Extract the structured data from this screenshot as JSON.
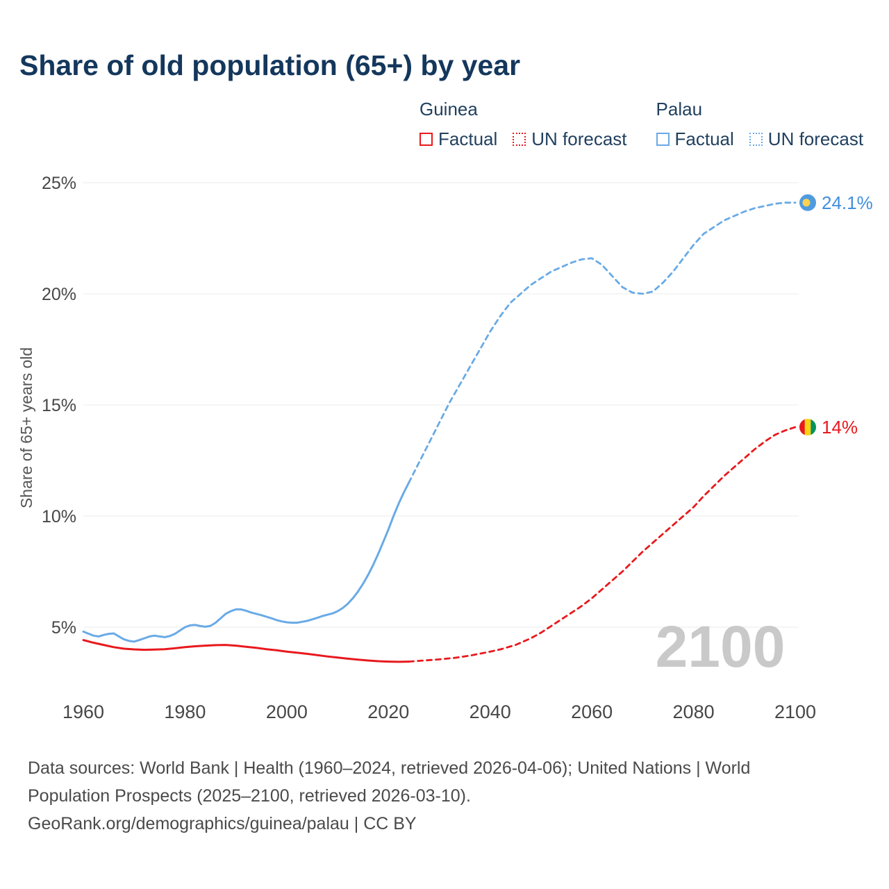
{
  "header": {
    "title": "Share of old population (65+) by year"
  },
  "legend": {
    "groups": [
      {
        "name": "Guinea",
        "color": "#e8191d",
        "items": [
          {
            "label": "Factual",
            "style": "solid"
          },
          {
            "label": "UN forecast",
            "style": "dotted"
          }
        ]
      },
      {
        "name": "Palau",
        "color": "#69aae6",
        "items": [
          {
            "label": "Factual",
            "style": "solid"
          },
          {
            "label": "UN forecast",
            "style": "dotted"
          }
        ]
      }
    ]
  },
  "footer": {
    "sources": "Data sources: World Bank | Health (1960–2024, retrieved 2026-04-06); United Nations | World Population Prospects (2025–2100, retrieved 2026-03-10).",
    "attribution": "GeoRank.org/demographics/guinea/palau | CC BY"
  },
  "chart_data": {
    "type": "line",
    "title": "Share of old population (65+) by year",
    "xlabel": "",
    "ylabel": "Share of 65+ years old",
    "xlim": [
      1955,
      2115
    ],
    "ylim": [
      2.5,
      26.5
    ],
    "xticks": [
      1960,
      1980,
      2000,
      2020,
      2040,
      2060,
      2080,
      2100
    ],
    "yticks": [
      5,
      10,
      15,
      20,
      25
    ],
    "grid": true,
    "legend_position": "top-right",
    "watermark": "2100",
    "series": [
      {
        "id": "guinea-factual",
        "name": "Guinea Factual",
        "color": "#e8191d",
        "dash": false,
        "points": [
          [
            1960,
            4.42
          ],
          [
            1962,
            4.3
          ],
          [
            1964,
            4.2
          ],
          [
            1966,
            4.1
          ],
          [
            1968,
            4.03
          ],
          [
            1970,
            4.0
          ],
          [
            1972,
            3.98
          ],
          [
            1974,
            3.99
          ],
          [
            1976,
            4.01
          ],
          [
            1978,
            4.05
          ],
          [
            1980,
            4.1
          ],
          [
            1982,
            4.14
          ],
          [
            1984,
            4.17
          ],
          [
            1986,
            4.19
          ],
          [
            1988,
            4.2
          ],
          [
            1990,
            4.17
          ],
          [
            1992,
            4.12
          ],
          [
            1994,
            4.07
          ],
          [
            1996,
            4.01
          ],
          [
            1998,
            3.96
          ],
          [
            2000,
            3.9
          ],
          [
            2002,
            3.85
          ],
          [
            2004,
            3.8
          ],
          [
            2006,
            3.74
          ],
          [
            2008,
            3.68
          ],
          [
            2010,
            3.63
          ],
          [
            2012,
            3.58
          ],
          [
            2014,
            3.54
          ],
          [
            2016,
            3.5
          ],
          [
            2018,
            3.47
          ],
          [
            2020,
            3.45
          ],
          [
            2022,
            3.44
          ],
          [
            2024,
            3.45
          ]
        ]
      },
      {
        "id": "guinea-forecast",
        "name": "Guinea UN forecast",
        "color": "#e8191d",
        "dash": true,
        "points": [
          [
            2024,
            3.45
          ],
          [
            2027,
            3.5
          ],
          [
            2030,
            3.55
          ],
          [
            2033,
            3.62
          ],
          [
            2036,
            3.72
          ],
          [
            2039,
            3.85
          ],
          [
            2042,
            4.0
          ],
          [
            2045,
            4.2
          ],
          [
            2048,
            4.5
          ],
          [
            2050,
            4.75
          ],
          [
            2052,
            5.05
          ],
          [
            2054,
            5.35
          ],
          [
            2056,
            5.65
          ],
          [
            2058,
            5.95
          ],
          [
            2060,
            6.3
          ],
          [
            2062,
            6.7
          ],
          [
            2064,
            7.1
          ],
          [
            2066,
            7.5
          ],
          [
            2068,
            7.95
          ],
          [
            2070,
            8.4
          ],
          [
            2072,
            8.8
          ],
          [
            2074,
            9.2
          ],
          [
            2076,
            9.6
          ],
          [
            2078,
            10.0
          ],
          [
            2080,
            10.4
          ],
          [
            2082,
            10.9
          ],
          [
            2084,
            11.35
          ],
          [
            2086,
            11.8
          ],
          [
            2088,
            12.2
          ],
          [
            2090,
            12.6
          ],
          [
            2092,
            13.0
          ],
          [
            2094,
            13.35
          ],
          [
            2096,
            13.65
          ],
          [
            2098,
            13.85
          ],
          [
            2100,
            14.0
          ]
        ]
      },
      {
        "id": "palau-factual",
        "name": "Palau Factual",
        "color": "#69aae6",
        "dash": false,
        "points": [
          [
            1960,
            4.8
          ],
          [
            1962,
            4.62
          ],
          [
            1963,
            4.58
          ],
          [
            1964,
            4.65
          ],
          [
            1965,
            4.7
          ],
          [
            1966,
            4.72
          ],
          [
            1967,
            4.58
          ],
          [
            1968,
            4.45
          ],
          [
            1969,
            4.38
          ],
          [
            1970,
            4.35
          ],
          [
            1971,
            4.42
          ],
          [
            1972,
            4.5
          ],
          [
            1973,
            4.58
          ],
          [
            1974,
            4.62
          ],
          [
            1975,
            4.58
          ],
          [
            1976,
            4.55
          ],
          [
            1977,
            4.6
          ],
          [
            1978,
            4.7
          ],
          [
            1979,
            4.85
          ],
          [
            1980,
            5.0
          ],
          [
            1981,
            5.08
          ],
          [
            1982,
            5.1
          ],
          [
            1983,
            5.05
          ],
          [
            1984,
            5.02
          ],
          [
            1985,
            5.06
          ],
          [
            1986,
            5.2
          ],
          [
            1987,
            5.4
          ],
          [
            1988,
            5.6
          ],
          [
            1989,
            5.72
          ],
          [
            1990,
            5.8
          ],
          [
            1991,
            5.8
          ],
          [
            1992,
            5.74
          ],
          [
            1993,
            5.66
          ],
          [
            1994,
            5.6
          ],
          [
            1995,
            5.54
          ],
          [
            1996,
            5.47
          ],
          [
            1997,
            5.4
          ],
          [
            1998,
            5.32
          ],
          [
            1999,
            5.26
          ],
          [
            2000,
            5.22
          ],
          [
            2001,
            5.2
          ],
          [
            2002,
            5.2
          ],
          [
            2003,
            5.24
          ],
          [
            2004,
            5.28
          ],
          [
            2005,
            5.35
          ],
          [
            2006,
            5.42
          ],
          [
            2007,
            5.5
          ],
          [
            2008,
            5.56
          ],
          [
            2009,
            5.62
          ],
          [
            2010,
            5.72
          ],
          [
            2011,
            5.86
          ],
          [
            2012,
            6.05
          ],
          [
            2013,
            6.3
          ],
          [
            2014,
            6.6
          ],
          [
            2015,
            6.95
          ],
          [
            2016,
            7.35
          ],
          [
            2017,
            7.8
          ],
          [
            2018,
            8.3
          ],
          [
            2019,
            8.85
          ],
          [
            2020,
            9.4
          ],
          [
            2021,
            10.0
          ],
          [
            2022,
            10.55
          ],
          [
            2023,
            11.05
          ],
          [
            2024,
            11.5
          ]
        ]
      },
      {
        "id": "palau-forecast",
        "name": "Palau UN forecast",
        "color": "#69aae6",
        "dash": true,
        "points": [
          [
            2024,
            11.5
          ],
          [
            2026,
            12.4
          ],
          [
            2028,
            13.3
          ],
          [
            2030,
            14.2
          ],
          [
            2032,
            15.1
          ],
          [
            2034,
            15.9
          ],
          [
            2036,
            16.7
          ],
          [
            2038,
            17.5
          ],
          [
            2040,
            18.3
          ],
          [
            2042,
            19.0
          ],
          [
            2044,
            19.6
          ],
          [
            2046,
            20.0
          ],
          [
            2048,
            20.4
          ],
          [
            2050,
            20.7
          ],
          [
            2052,
            21.0
          ],
          [
            2054,
            21.2
          ],
          [
            2056,
            21.4
          ],
          [
            2058,
            21.55
          ],
          [
            2060,
            21.6
          ],
          [
            2062,
            21.3
          ],
          [
            2064,
            20.8
          ],
          [
            2066,
            20.3
          ],
          [
            2068,
            20.05
          ],
          [
            2070,
            20.0
          ],
          [
            2072,
            20.1
          ],
          [
            2074,
            20.5
          ],
          [
            2076,
            21.0
          ],
          [
            2078,
            21.6
          ],
          [
            2080,
            22.2
          ],
          [
            2082,
            22.7
          ],
          [
            2084,
            23.0
          ],
          [
            2086,
            23.3
          ],
          [
            2088,
            23.5
          ],
          [
            2090,
            23.7
          ],
          [
            2092,
            23.85
          ],
          [
            2094,
            23.95
          ],
          [
            2096,
            24.05
          ],
          [
            2098,
            24.1
          ],
          [
            2100,
            24.1
          ]
        ]
      }
    ],
    "end_markers": [
      {
        "id": "palau",
        "label": "24.1%",
        "label_color": "#3f8fdd",
        "year": 2100,
        "value": 24.1,
        "flag_colors": [
          "#4f9be0",
          "#ffd34f"
        ]
      },
      {
        "id": "guinea",
        "label": "14%",
        "label_color": "#e8191d",
        "year": 2100,
        "value": 14,
        "flag_colors": [
          "#e8191d",
          "#fcd116",
          "#009460"
        ]
      }
    ]
  }
}
